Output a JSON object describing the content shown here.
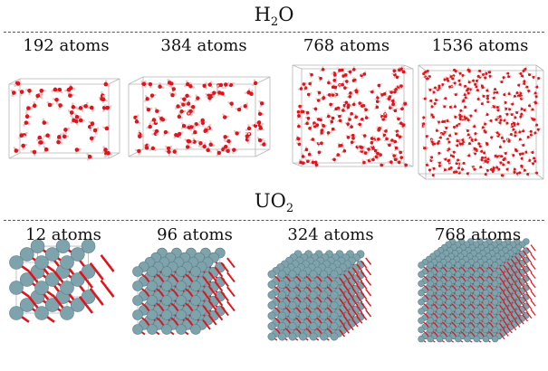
{
  "sections": [
    {
      "title_main": "H",
      "title_sub": "2",
      "title_tail": "O",
      "panels": [
        {
          "label": "192 atoms",
          "atoms": 192
        },
        {
          "label": "384 atoms",
          "atoms": 384
        },
        {
          "label": "768 atoms",
          "atoms": 768
        },
        {
          "label": "1536 atoms",
          "atoms": 1536
        }
      ]
    },
    {
      "title_main": "UO",
      "title_sub": "2",
      "title_tail": "",
      "panels": [
        {
          "label": "12 atoms",
          "atoms": 12
        },
        {
          "label": "96 atoms",
          "atoms": 96
        },
        {
          "label": "324 atoms",
          "atoms": 324
        },
        {
          "label": "768 atoms",
          "atoms": 768
        }
      ]
    }
  ],
  "colors": {
    "oxygen": "#e0141c",
    "hydrogen": "#f2c4c4",
    "uranium": "#7fa3ad",
    "box": "#b5b5b5"
  }
}
